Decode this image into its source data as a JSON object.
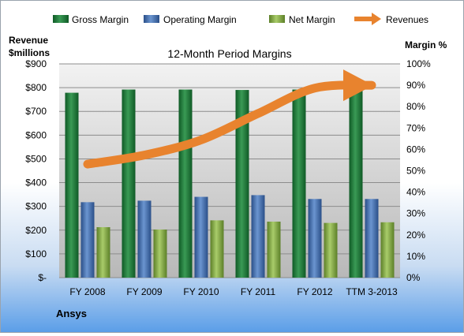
{
  "chart_data": {
    "type": "bar",
    "title": "12-Month Period Margins",
    "left_axis_label_line1": "Revenue",
    "left_axis_label_line2": "$millions",
    "right_axis_label": "Margin %",
    "company": "Ansys",
    "categories": [
      "FY 2008",
      "FY 2009",
      "FY 2010",
      "FY 2011",
      "FY 2012",
      "TTM 3-2013"
    ],
    "left_axis": {
      "min": 0,
      "max": 900,
      "step": 100,
      "ticks": [
        "$-",
        "$100",
        "$200",
        "$300",
        "$400",
        "$500",
        "$600",
        "$700",
        "$800",
        "$900"
      ]
    },
    "right_axis": {
      "min": 0,
      "max": 100,
      "step": 10,
      "ticks": [
        "0%",
        "10%",
        "20%",
        "30%",
        "40%",
        "50%",
        "60%",
        "70%",
        "80%",
        "90%",
        "100%"
      ]
    },
    "series": [
      {
        "name": "Gross Margin",
        "axis": "right",
        "values": [
          86.5,
          88.0,
          88.0,
          87.8,
          88.0,
          88.0
        ],
        "color": "#1f7a3a"
      },
      {
        "name": "Operating Margin",
        "axis": "right",
        "values": [
          35.3,
          36.0,
          37.8,
          38.6,
          36.8,
          36.8
        ],
        "color": "#3f6fb5"
      },
      {
        "name": "Net Margin",
        "axis": "right",
        "values": [
          23.6,
          22.5,
          26.8,
          26.2,
          25.6,
          25.9
        ],
        "color": "#8fb24f"
      },
      {
        "name": "Revenues",
        "axis": "left",
        "type": "line",
        "values": [
          478,
          516,
          580,
          691,
          798,
          810
        ],
        "color": "#e8832e"
      }
    ],
    "grid": true,
    "legend_position": "top"
  }
}
